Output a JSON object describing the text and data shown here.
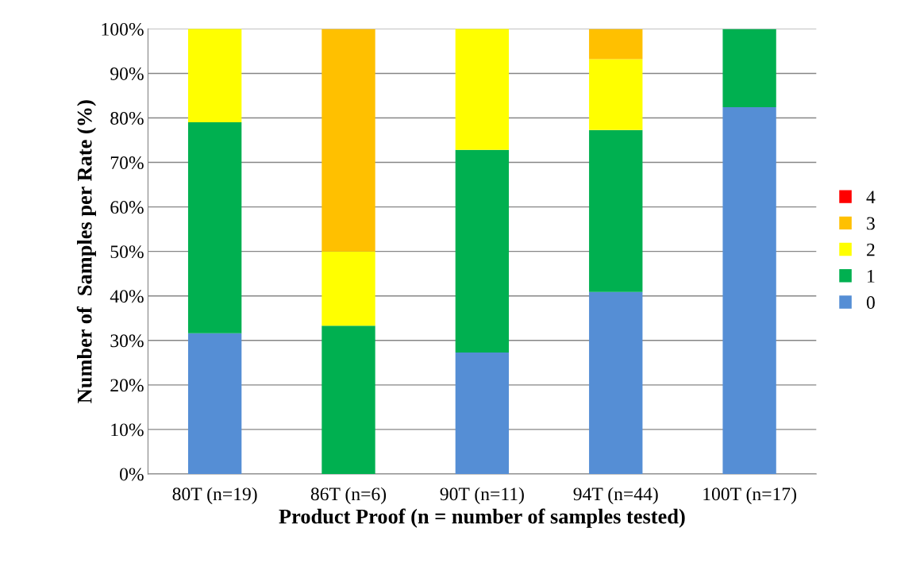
{
  "chart_data": {
    "type": "bar",
    "stacked": true,
    "xlabel": "Product Proof (n = number of samples tested)",
    "ylabel": "Number of  Samples per Rate (%)",
    "categories": [
      "80T (n=19)",
      "86T (n=6)",
      "90T (n=11)",
      "94T (n=44)",
      "100T (n=17)"
    ],
    "series": [
      {
        "name": "0",
        "color": "#558ed5",
        "values": [
          31.6,
          0,
          27.3,
          40.9,
          82.4
        ]
      },
      {
        "name": "1",
        "color": "#00b050",
        "values": [
          47.4,
          33.3,
          45.5,
          36.4,
          17.6
        ]
      },
      {
        "name": "2",
        "color": "#ffff00",
        "values": [
          21.1,
          16.7,
          27.3,
          15.9,
          0
        ]
      },
      {
        "name": "3",
        "color": "#ffc000",
        "values": [
          0,
          50.0,
          0,
          6.8,
          0
        ]
      },
      {
        "name": "4",
        "color": "#ff0000",
        "values": [
          0,
          0,
          0,
          0,
          0
        ]
      }
    ],
    "ylim": [
      0,
      100
    ],
    "yticks": [
      {
        "value": 0,
        "label": "0%"
      },
      {
        "value": 10,
        "label": "10%"
      },
      {
        "value": 20,
        "label": "20%"
      },
      {
        "value": 30,
        "label": "30%"
      },
      {
        "value": 40,
        "label": "40%"
      },
      {
        "value": 50,
        "label": "50%"
      },
      {
        "value": 60,
        "label": "60%"
      },
      {
        "value": 70,
        "label": "70%"
      },
      {
        "value": 80,
        "label": "80%"
      },
      {
        "value": 90,
        "label": "90%"
      },
      {
        "value": 100,
        "label": "100%"
      }
    ],
    "grid": "y",
    "legend": "right"
  }
}
